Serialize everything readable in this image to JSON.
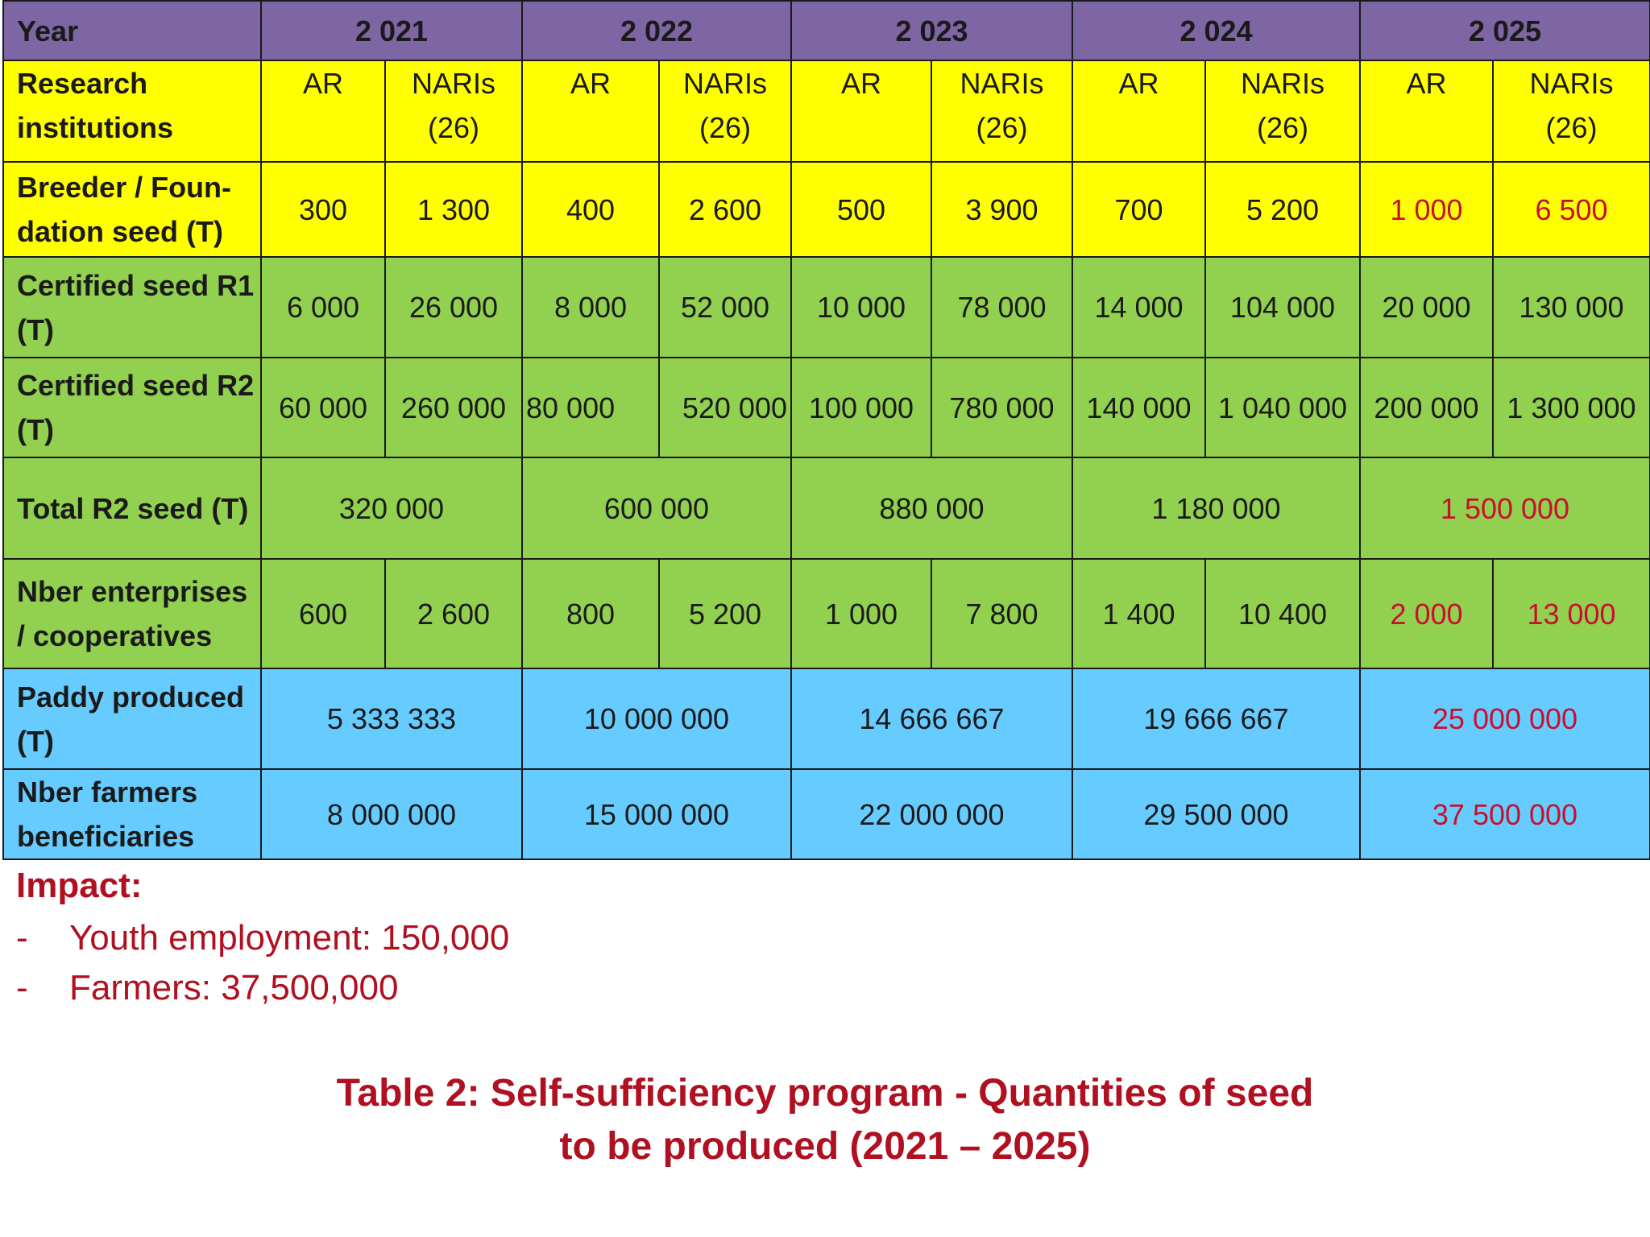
{
  "header": {
    "year_label": "Year",
    "years": [
      "2 021",
      "2 022",
      "2 023",
      "2 024",
      "2 025"
    ]
  },
  "rows": {
    "institutions": {
      "label_line1": "Research",
      "label_line2": "institutions",
      "ar": "AR",
      "naris_line1": "NARIs",
      "naris_line2": "(26)"
    },
    "breeder": {
      "label_line1": "Breeder / Foun-",
      "label_line2": "dation seed (T)",
      "values": [
        "300",
        "1 300",
        "400",
        "2 600",
        "500",
        "3 900",
        "700",
        "5 200",
        "1 000",
        "6 500"
      ]
    },
    "r1": {
      "label_line1": "Certified seed R1",
      "label_line2": "(T)",
      "values": [
        "6 000",
        "26 000",
        "8 000",
        "52 000",
        "10 000",
        "78 000",
        "14 000",
        "104 000",
        "20 000",
        "130 000"
      ]
    },
    "r2": {
      "label_line1": "Certified seed R2",
      "label_line2": "(T)",
      "values": [
        "60 000",
        "260 000",
        "80 000",
        "520 000",
        "100 000",
        "780 000",
        "140 000",
        "1 040 000",
        "200 000",
        "1 300 000"
      ]
    },
    "total_r2": {
      "label": "Total R2 seed (T)",
      "values": [
        "320 000",
        "600 000",
        "880 000",
        "1 180 000",
        "1 500 000"
      ]
    },
    "enterprises": {
      "label_line1": "Nber enterprises",
      "label_line2": "/ cooperatives",
      "values": [
        "600",
        "2 600",
        "800",
        "5 200",
        "1 000",
        "7 800",
        "1 400",
        "10 400",
        "2 000",
        "13 000"
      ]
    },
    "paddy": {
      "label_line1": "Paddy produced",
      "label_line2": "(T)",
      "values": [
        "5 333 333",
        "10 000 000",
        "14 666 667",
        "19 666 667",
        "25 000 000"
      ]
    },
    "farmers": {
      "label_line1": "Nber farmers",
      "label_line2": "beneficiaries",
      "values": [
        "8 000 000",
        "15 000 000",
        "22 000 000",
        "29 500 000",
        "37 500 000"
      ]
    }
  },
  "impact": {
    "title": "Impact:",
    "items": [
      {
        "dash": "-",
        "text": "Youth employment: 150,000"
      },
      {
        "dash": "-",
        "text": "Farmers: 37,500,000"
      }
    ]
  },
  "caption": {
    "line1": "Table 2: Self-sufficiency program - Quantities of seed",
    "line2": "to be produced (2021 – 2025)"
  },
  "colors": {
    "header_bg": "#7e65a3",
    "yellow_bg": "#ffff00",
    "green_bg": "#92d050",
    "blue_bg": "#66ccff",
    "highlight_text": "#c8102e",
    "impact_text": "#b01020"
  }
}
